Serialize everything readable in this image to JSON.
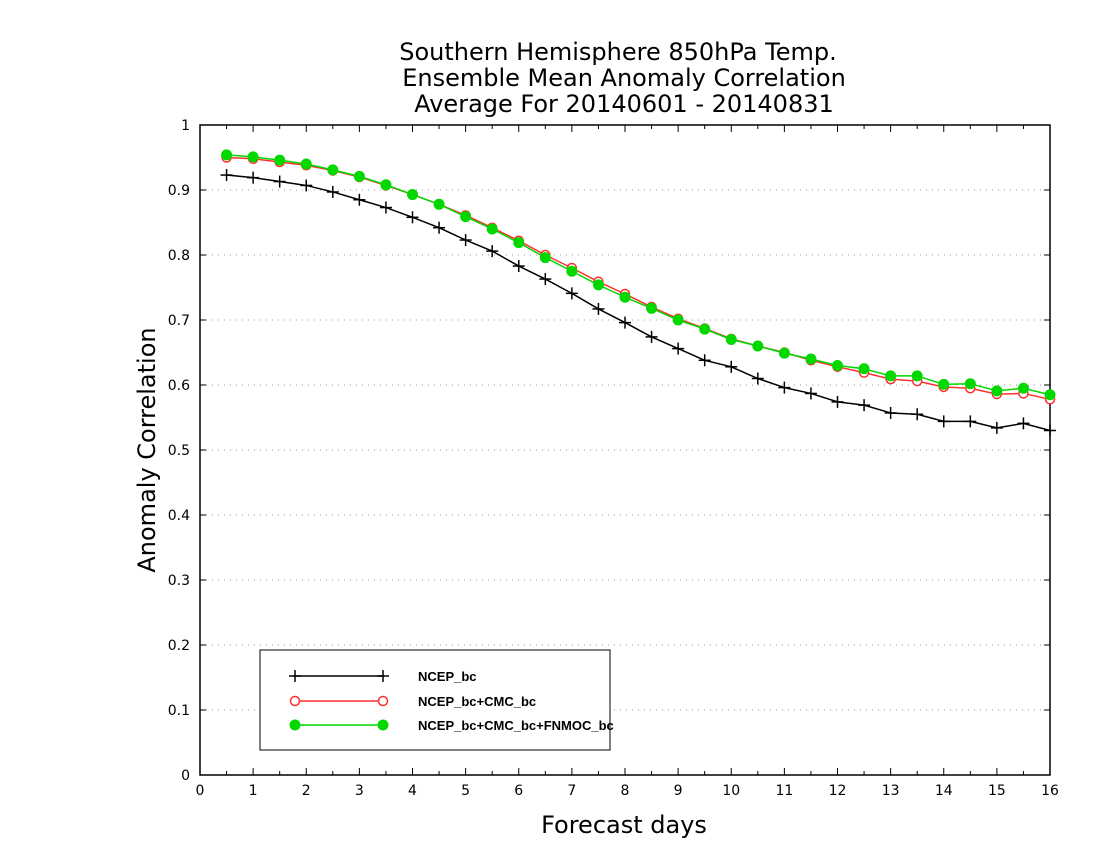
{
  "chart_data": {
    "type": "line",
    "title": [
      "Southern Hemisphere 850hPa Temp.",
      "Ensemble Mean Anomaly Correlation",
      "Average For 20140601 - 20140831"
    ],
    "xlabel": "Forecast days",
    "ylabel": "Anomaly Correlation",
    "xlim": [
      0,
      16
    ],
    "ylim": [
      0,
      1
    ],
    "x_ticks": [
      "0",
      "1",
      "2",
      "3",
      "4",
      "5",
      "6",
      "7",
      "8",
      "9",
      "10",
      "11",
      "12",
      "13",
      "14",
      "15",
      "16"
    ],
    "y_ticks": [
      "0",
      "0.1",
      "0.2",
      "0.3",
      "0.4",
      "0.5",
      "0.6",
      "0.7",
      "0.8",
      "0.9",
      "1"
    ],
    "grid": "horizontal dotted",
    "legend_position": "bottom-left",
    "x": [
      0.5,
      1,
      1.5,
      2,
      2.5,
      3,
      3.5,
      4,
      4.5,
      5,
      5.5,
      6,
      6.5,
      7,
      7.5,
      8,
      8.5,
      9,
      9.5,
      10,
      10.5,
      11,
      11.5,
      12,
      12.5,
      13,
      13.5,
      14,
      14.5,
      15,
      15.5,
      16
    ],
    "series": [
      {
        "name": "NCEP_bc",
        "color": "#000000",
        "marker": "plus",
        "values": [
          0.923,
          0.919,
          0.913,
          0.907,
          0.897,
          0.885,
          0.873,
          0.858,
          0.842,
          0.823,
          0.806,
          0.783,
          0.763,
          0.741,
          0.717,
          0.696,
          0.674,
          0.656,
          0.638,
          0.628,
          0.61,
          0.596,
          0.587,
          0.574,
          0.569,
          0.557,
          0.555,
          0.544,
          0.544,
          0.534,
          0.541,
          0.53
        ]
      },
      {
        "name": "NCEP_bc+CMC_bc",
        "color": "#ff3030",
        "marker": "open-circle",
        "values": [
          0.95,
          0.948,
          0.943,
          0.938,
          0.93,
          0.92,
          0.907,
          0.893,
          0.878,
          0.861,
          0.842,
          0.822,
          0.8,
          0.78,
          0.759,
          0.74,
          0.72,
          0.702,
          0.687,
          0.671,
          0.66,
          0.65,
          0.638,
          0.628,
          0.619,
          0.609,
          0.606,
          0.597,
          0.595,
          0.586,
          0.587,
          0.578
        ]
      },
      {
        "name": "NCEP_bc+CMC_bc+FNMOC_bc",
        "color": "#00d800",
        "marker": "filled-circle",
        "values": [
          0.954,
          0.951,
          0.946,
          0.94,
          0.931,
          0.921,
          0.908,
          0.893,
          0.878,
          0.859,
          0.84,
          0.819,
          0.796,
          0.775,
          0.754,
          0.735,
          0.718,
          0.7,
          0.686,
          0.67,
          0.66,
          0.649,
          0.64,
          0.63,
          0.625,
          0.614,
          0.614,
          0.601,
          0.602,
          0.591,
          0.595,
          0.585
        ]
      }
    ]
  }
}
